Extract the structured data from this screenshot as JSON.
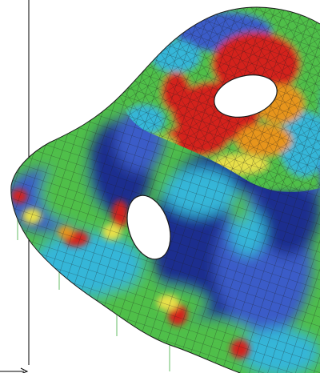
{
  "scene": {
    "subject": "fea-stress-contour-mesh",
    "background_color": "#ffffff",
    "mesh_line_color": "#1a1a1a",
    "constraint_line_color": "#7ec87e",
    "frame_line_color": "#000000",
    "stress_scale": [
      "#1e2f8f",
      "#3a5cc8",
      "#35b6d8",
      "#4fbf4a",
      "#9ed84a",
      "#e8e04a",
      "#e7951f",
      "#d4231c"
    ]
  }
}
